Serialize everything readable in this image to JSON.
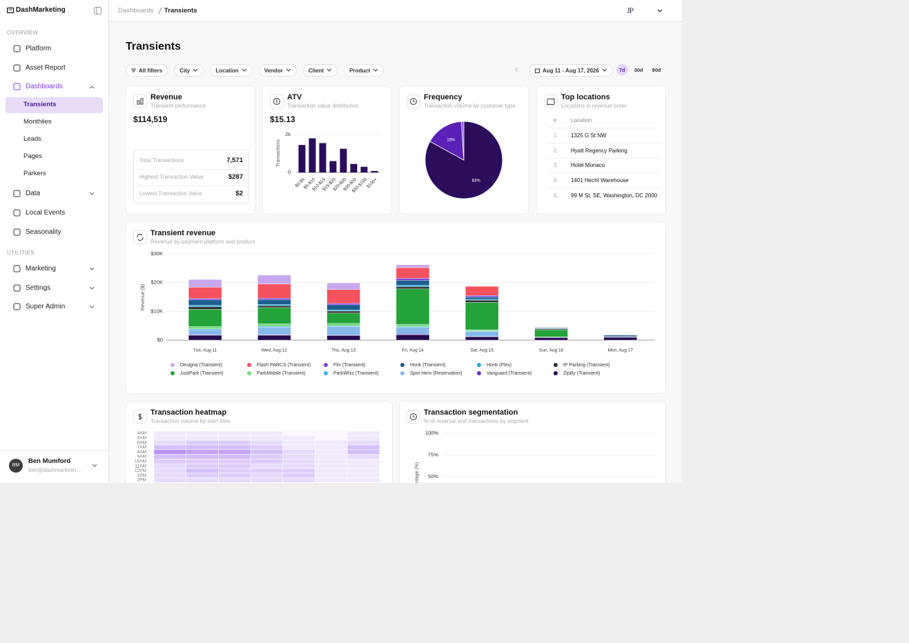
{
  "sidebar": {
    "brand": "DashMarketing",
    "sections": [
      {
        "title": "OVERVIEW",
        "items": [
          {
            "label": "Platform"
          },
          {
            "label": "Asset Report"
          },
          {
            "label": "Dashboards",
            "expanded": true,
            "children": [
              "Transients",
              "Monthlies",
              "Leads",
              "Pages",
              "Parkers"
            ]
          },
          {
            "label": "Data",
            "expanded": false
          },
          {
            "label": "Local Events"
          },
          {
            "label": "Seasonality"
          }
        ]
      },
      {
        "title": "UTILITIES",
        "items": [
          {
            "label": "Marketing",
            "expanded": false
          },
          {
            "label": "Settings",
            "expanded": false
          },
          {
            "label": "Super Admin",
            "expanded": false
          }
        ]
      }
    ],
    "user": {
      "initials": "BM",
      "name": "Ben Mumford",
      "email": "ben@dashmarketin..."
    }
  },
  "breadcrumb": [
    "Dashboards",
    "Transients"
  ],
  "logo": "JP",
  "page_title": "Transients",
  "filters": [
    "All filters",
    "City",
    "Location",
    "Vendor",
    "Client",
    "Product"
  ],
  "date_range": "Aug 11 - Aug 17, 2026",
  "ranges": [
    "7d",
    "30d",
    "90d"
  ],
  "revenue_card": {
    "title": "Revenue",
    "subtitle": "Transient performance",
    "total": "$114,519",
    "stats": [
      [
        "Total Transactions",
        "7,571"
      ],
      [
        "Highest Transaction Value",
        "$287"
      ],
      [
        "Lowest Transaction Value",
        "$2"
      ]
    ]
  },
  "atv_card": {
    "title": "ATV",
    "subtitle": "Transaction value distribution",
    "value": "$15.13"
  },
  "frequency_card": {
    "title": "Frequency",
    "subtitle": "Transaction volume by customer type"
  },
  "locations_card": {
    "title": "Top locations",
    "subtitle": "Locations in revenue order",
    "header": [
      "#",
      "Location"
    ],
    "rows": [
      [
        "1.",
        "1325 G St NW"
      ],
      [
        "2.",
        "Hyatt Regency Parking"
      ],
      [
        "3.",
        "Hotel Monaco"
      ],
      [
        "4.",
        "1401 Hecht Warehouse"
      ],
      [
        "5.",
        "99 M St. SE, Washington, DC 2000"
      ]
    ]
  },
  "revenue_chart_card": {
    "title": "Transient revenue",
    "subtitle": "Revenue by payment platform and product"
  },
  "heatmap_card": {
    "title": "Transaction heatmap",
    "subtitle": "Transaction volume by start time"
  },
  "segmentation_card": {
    "title": "Transaction segmentation",
    "subtitle": "% of revenue and transactions by segment"
  },
  "chart_data": [
    {
      "type": "bar",
      "ylabel": "Transactions",
      "categories": [
        "$0-$5",
        "$5-$10",
        "$10-$15",
        "$15-$20",
        "$20-$30",
        "$30-$50",
        "$50-$100",
        "$100+"
      ],
      "values": [
        1450,
        1800,
        1550,
        600,
        1250,
        450,
        300,
        80
      ],
      "color": "#2b0d5b",
      "ylim": [
        0,
        2000
      ],
      "yticks": [
        0,
        {
          "value": 2000,
          "label": "2k"
        }
      ],
      "grid": true
    },
    {
      "type": "pie",
      "categories": [
        null,
        null,
        null
      ],
      "values": [
        83,
        16,
        1
      ],
      "value_labels": [
        "83%",
        "16%",
        null
      ],
      "colors": [
        "#2b0d5b",
        "#5b21b6",
        "#8b5cf6"
      ]
    },
    {
      "type": "bar",
      "stacked": true,
      "ylabel": "Revenue ($)",
      "categories": [
        "Tue, Aug 11",
        "Wed, Aug 12",
        "Thu, Aug 13",
        "Fri, Aug 14",
        "Sat, Aug 15",
        "Sun, Aug 16",
        "Mon, Aug 17"
      ],
      "series": [
        {
          "name": "Designa (Transient)",
          "color": "#c9a7ee",
          "values": [
            2700,
            3100,
            2300,
            1000,
            0,
            0,
            0
          ]
        },
        {
          "name": "Flash PARCS (Transient)",
          "color": "#f4525f",
          "values": [
            3900,
            4900,
            4800,
            3700,
            3200,
            0,
            0
          ]
        },
        {
          "name": "Flix (Transient)",
          "color": "#8040d8",
          "values": [
            500,
            500,
            500,
            700,
            500,
            0,
            0
          ]
        },
        {
          "name": "Honk (Transient)",
          "color": "#1d5e8f",
          "values": [
            1900,
            1700,
            1800,
            1700,
            800,
            300,
            500
          ]
        },
        {
          "name": "Honk (Flex)",
          "color": "#22a7d6",
          "values": [
            500,
            400,
            400,
            500,
            300,
            100,
            100
          ]
        },
        {
          "name": "IP Parking (Transient)",
          "color": "#333333",
          "values": [
            900,
            700,
            700,
            800,
            800,
            300,
            100
          ]
        },
        {
          "name": "JustPark (Transient)",
          "color": "#24a33b",
          "values": [
            6000,
            5600,
            3600,
            12300,
            9500,
            2500,
            0
          ]
        },
        {
          "name": "ParkMobile (Transient)",
          "color": "#74d97d",
          "values": [
            800,
            900,
            800,
            800,
            400,
            100,
            0
          ]
        },
        {
          "name": "ParkWhiz (Transient)",
          "color": "#38b3df",
          "values": [
            300,
            300,
            300,
            300,
            200,
            0,
            0
          ]
        },
        {
          "name": "Spot Hero (Reservation)",
          "color": "#86b8ea",
          "values": [
            1700,
            2600,
            2900,
            2300,
            1700,
            100,
            0
          ]
        },
        {
          "name": "Vanguard (Transient)",
          "color": "#6a2fc6",
          "values": [
            200,
            200,
            200,
            200,
            100,
            0,
            0
          ]
        },
        {
          "name": "ZipBy (Transient)",
          "color": "#26094f",
          "values": [
            1700,
            1700,
            1600,
            1900,
            1200,
            900,
            1000
          ]
        }
      ],
      "ylim": [
        0,
        30000
      ],
      "yticks": [
        {
          "value": 0,
          "label": "$0"
        },
        {
          "value": 10000,
          "label": "$10K"
        },
        {
          "value": 20000,
          "label": "$20K"
        },
        {
          "value": 30000,
          "label": "$30K"
        }
      ],
      "grid": true,
      "legend": "bottom"
    },
    {
      "type": "heatmap",
      "rows": [
        "4AM",
        "5AM",
        "6AM",
        "7AM",
        "8AM",
        "9AM",
        "10AM",
        "11AM",
        "12PM",
        "1PM",
        "2PM"
      ],
      "values": [
        [
          1,
          1,
          1,
          1,
          0,
          0,
          1
        ],
        [
          1,
          1,
          1,
          1,
          1,
          0,
          1
        ],
        [
          2,
          3,
          3,
          2,
          1,
          1,
          2
        ],
        [
          4,
          4,
          4,
          3,
          1,
          1,
          4
        ],
        [
          7,
          6,
          6,
          4,
          2,
          1,
          4
        ],
        [
          4,
          4,
          4,
          3,
          2,
          1,
          2
        ],
        [
          3,
          3,
          3,
          3,
          2,
          1,
          1
        ],
        [
          2,
          3,
          3,
          2,
          2,
          1,
          1
        ],
        [
          2,
          4,
          3,
          3,
          3,
          1,
          1
        ],
        [
          2,
          3,
          3,
          2,
          3,
          1,
          1
        ],
        [
          2,
          2,
          2,
          2,
          2,
          1,
          1
        ]
      ],
      "color": "#7c3aed"
    },
    {
      "type": "bar",
      "stacked": true,
      "ylabel": "Percentage (%)",
      "ylim": [
        0,
        100
      ],
      "yticks": [
        {
          "value": 100,
          "label": "100%"
        },
        {
          "value": 75,
          "label": "75%"
        },
        {
          "value": 50,
          "label": "50%"
        }
      ],
      "grid": true
    }
  ]
}
